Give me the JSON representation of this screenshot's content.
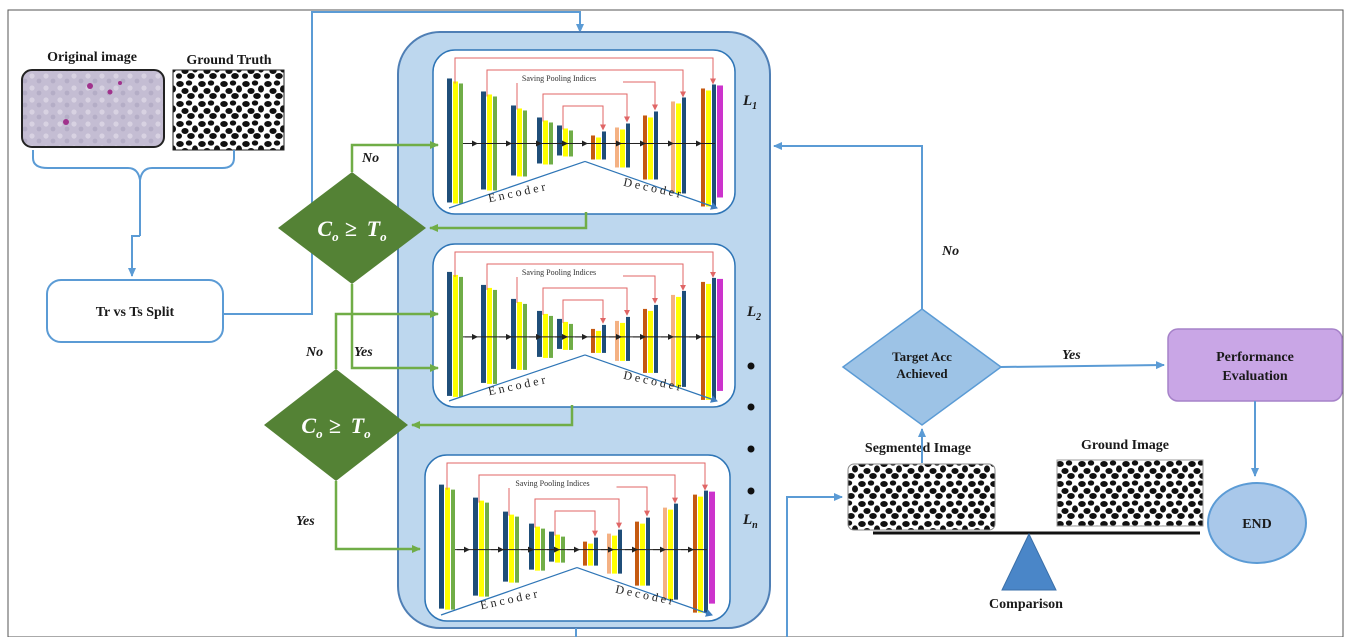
{
  "original_image_label": "Original image",
  "ground_truth_label": "Ground Truth",
  "split_label": "Tr vs Ts Split",
  "condition": {
    "lhs": "C",
    "lhs_sub": "o",
    "op": "≥",
    "rhs": "T",
    "rhs_sub": "o"
  },
  "edge_no": "No",
  "edge_yes": "Yes",
  "pooling_label": "Saving Pooling Indices",
  "encoder_label": "Encoder",
  "decoder_label": "Decoder",
  "layers": [
    {
      "name": "L",
      "sub": "1"
    },
    {
      "name": "L",
      "sub": "2"
    },
    {
      "name": "L",
      "sub": "n"
    }
  ],
  "target_label_line1": "Target Acc",
  "target_label_line2": "Achieved",
  "performance_line1": "Performance",
  "performance_line2": "Evaluation",
  "segmented_label": "Segmented Image",
  "ground_image_label": "Ground Image",
  "comparison_label": "Comparison",
  "end_label": "END",
  "colors": {
    "panel_fill": "#bdd7ee",
    "panel_stroke": "#4f7fb5",
    "blue_arrow": "#5b9bd5",
    "green": "#548235",
    "green_arrow": "#70ad47",
    "purple": "#c9a6e6",
    "diamond_blue": "#9dc3e6",
    "end_fill": "#a9c8ea",
    "pool_red": "#e06666"
  }
}
